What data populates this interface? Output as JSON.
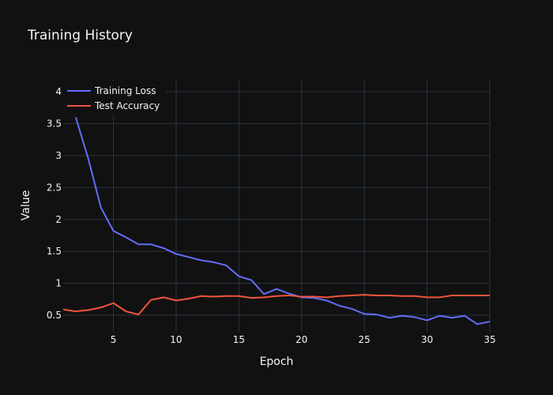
{
  "chart_data": {
    "type": "line",
    "title": "Training History",
    "xlabel": "Epoch",
    "ylabel": "Value",
    "xlim": [
      1,
      35
    ],
    "ylim": [
      0.24,
      4.2
    ],
    "xticks": [
      5,
      10,
      15,
      20,
      25,
      30,
      35
    ],
    "yticks": [
      0.5,
      1,
      1.5,
      2,
      2.5,
      3,
      3.5,
      4
    ],
    "grid": true,
    "legend_position": "top-left",
    "x": [
      1,
      2,
      3,
      4,
      5,
      6,
      7,
      8,
      9,
      10,
      11,
      12,
      13,
      14,
      15,
      16,
      17,
      18,
      19,
      20,
      21,
      22,
      23,
      24,
      25,
      26,
      27,
      28,
      29,
      30,
      31,
      32,
      33,
      34,
      35
    ],
    "series": [
      {
        "name": "Training Loss",
        "color": "#636efa",
        "x": [
          2,
          3,
          4,
          5,
          6,
          7,
          8,
          9,
          10,
          11,
          12,
          13,
          14,
          15,
          16,
          17,
          18,
          19,
          20,
          21,
          22,
          23,
          24,
          25,
          26,
          27,
          28,
          29,
          30,
          31,
          32,
          33,
          34,
          35
        ],
        "values": [
          3.6,
          2.95,
          2.19,
          1.82,
          1.72,
          1.61,
          1.61,
          1.55,
          1.46,
          1.41,
          1.36,
          1.33,
          1.28,
          1.11,
          1.05,
          0.83,
          0.91,
          0.84,
          0.78,
          0.77,
          0.73,
          0.65,
          0.6,
          0.52,
          0.51,
          0.46,
          0.49,
          0.47,
          0.42,
          0.49,
          0.46,
          0.49,
          0.36,
          0.4
        ]
      },
      {
        "name": "Test Accuracy",
        "color": "#ef553b",
        "x": [
          1,
          2,
          3,
          4,
          5,
          6,
          7,
          8,
          9,
          10,
          11,
          12,
          13,
          14,
          15,
          16,
          17,
          18,
          19,
          20,
          21,
          22,
          23,
          24,
          25,
          26,
          27,
          28,
          29,
          30,
          31,
          32,
          33,
          34,
          35
        ],
        "values": [
          0.59,
          0.56,
          0.58,
          0.62,
          0.69,
          0.56,
          0.51,
          0.74,
          0.78,
          0.73,
          0.76,
          0.8,
          0.79,
          0.8,
          0.8,
          0.77,
          0.78,
          0.8,
          0.81,
          0.79,
          0.79,
          0.78,
          0.8,
          0.81,
          0.82,
          0.81,
          0.81,
          0.8,
          0.8,
          0.78,
          0.78,
          0.81,
          0.81,
          0.81,
          0.81
        ]
      }
    ]
  }
}
